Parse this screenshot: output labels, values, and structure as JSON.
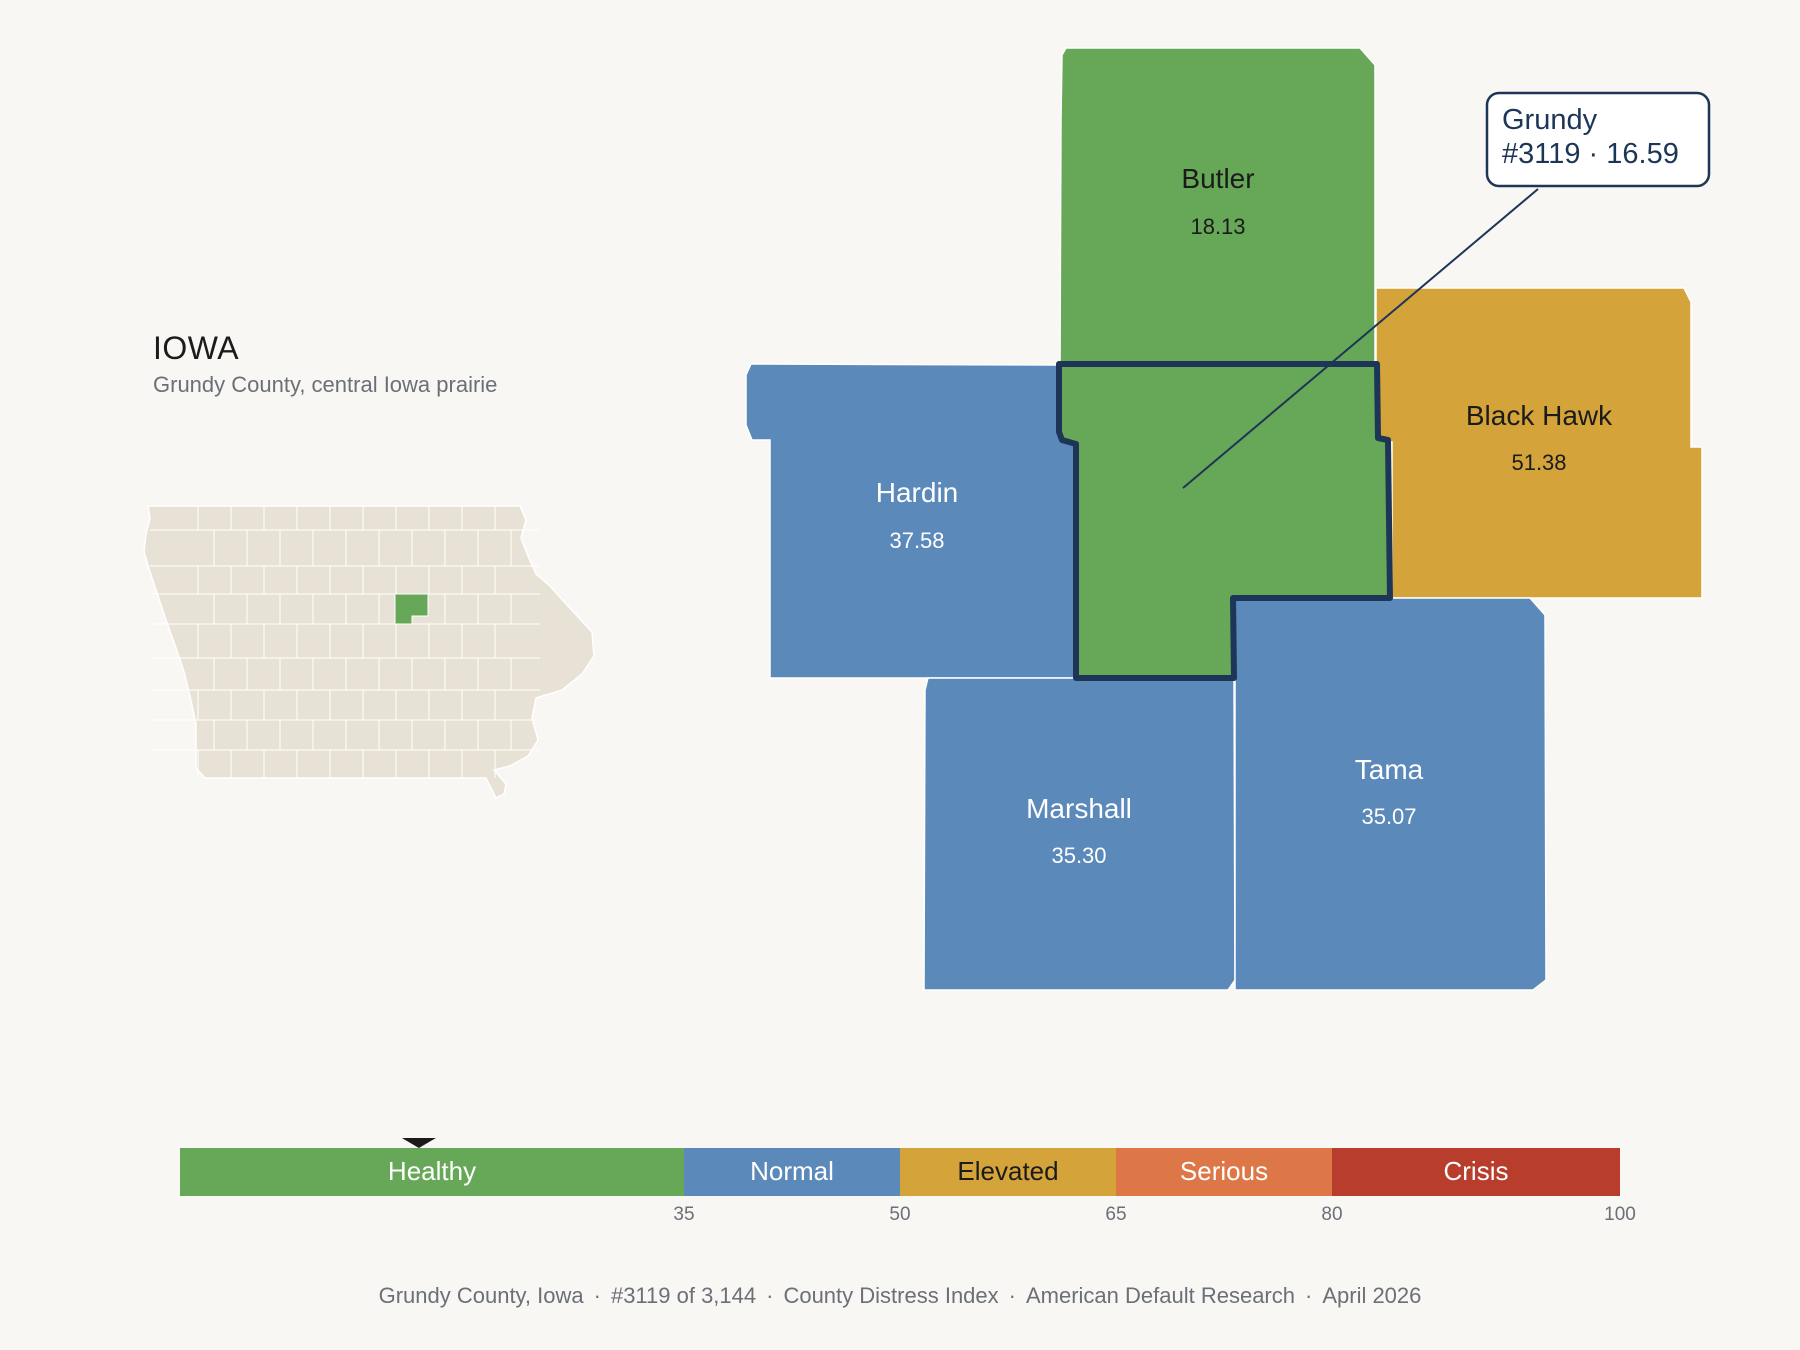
{
  "state": {
    "name": "IOWA",
    "subtitle": "Grundy County, central Iowa prairie"
  },
  "colors": {
    "healthy": "#67a758",
    "normal": "#5b89b9",
    "elevated": "#d4a43a",
    "serious": "#dd7748",
    "crisis": "#b93d2d",
    "focus_outline": "#1d3557",
    "inset_fill": "#e8e2d6",
    "background": "#f9f7f3"
  },
  "focus": {
    "name": "Grundy",
    "rank_line": "#3119 · 16.59",
    "score": 16.59,
    "category": "healthy"
  },
  "counties": [
    {
      "name": "Butler",
      "score_label": "18.13",
      "category": "healthy"
    },
    {
      "name": "Black Hawk",
      "score_label": "51.38",
      "category": "elevated"
    },
    {
      "name": "Hardin",
      "score_label": "37.58",
      "category": "normal"
    },
    {
      "name": "Marshall",
      "score_label": "35.30",
      "category": "normal"
    },
    {
      "name": "Tama",
      "score_label": "35.07",
      "category": "normal"
    }
  ],
  "legend": {
    "min": 0,
    "max": 100,
    "pointer_value": 16.59,
    "segments": [
      {
        "label": "Healthy",
        "from": 0,
        "to": 35,
        "color": "#67a758"
      },
      {
        "label": "Normal",
        "from": 35,
        "to": 50,
        "color": "#5b89b9"
      },
      {
        "label": "Elevated",
        "from": 50,
        "to": 65,
        "color": "#d4a43a"
      },
      {
        "label": "Serious",
        "from": 65,
        "to": 80,
        "color": "#dd7748"
      },
      {
        "label": "Crisis",
        "from": 80,
        "to": 100,
        "color": "#b93d2d"
      }
    ],
    "tick_labels": [
      "35",
      "50",
      "65",
      "80",
      "100"
    ]
  },
  "footer": {
    "county": "Grundy County, Iowa",
    "rank": "#3119 of 3,144",
    "index": "County Distress Index",
    "source": "American Default Research",
    "date": "April 2026"
  }
}
